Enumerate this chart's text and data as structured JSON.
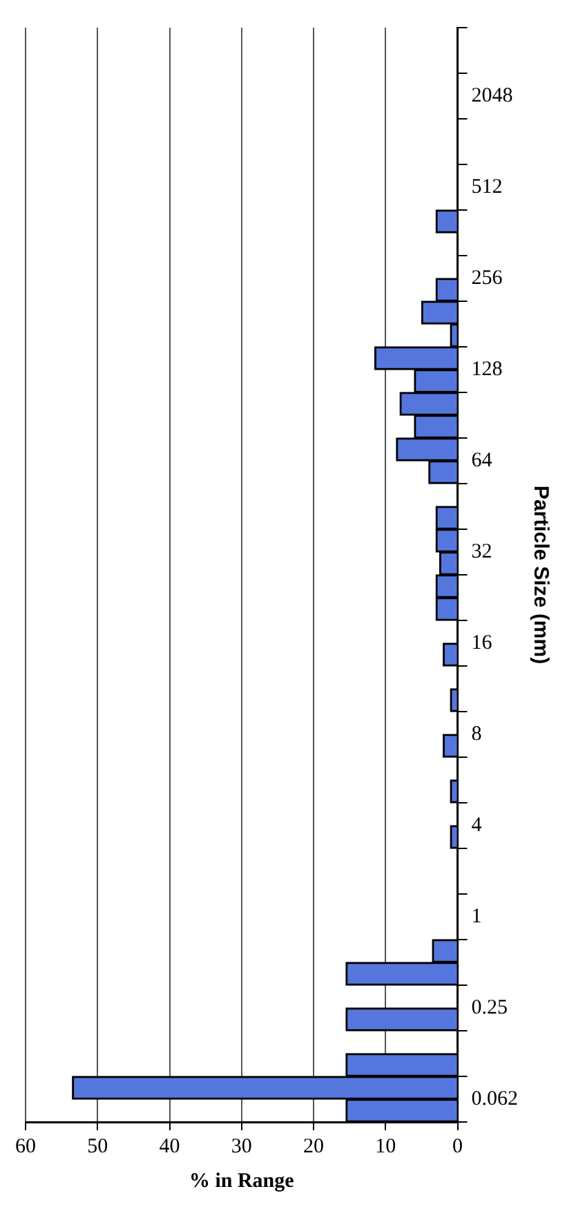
{
  "chart_data": {
    "type": "bar",
    "orientation": "horizontal",
    "xlabel": "% in Range",
    "ylabel": "Particle Size (mm)",
    "categories": [
      null,
      "2048",
      null,
      "512",
      null,
      "256",
      null,
      "128",
      null,
      "64",
      null,
      "32",
      null,
      "16",
      null,
      "8",
      null,
      "4",
      null,
      "1",
      null,
      "0.25",
      null,
      "0.062"
    ],
    "series": [
      {
        "color": "#5577dd",
        "values": [
          0,
          0,
          0,
          0,
          3,
          0,
          5,
          11.5,
          8,
          8.5,
          0,
          3,
          3,
          0,
          0,
          0,
          0,
          0,
          0,
          0,
          3.5,
          0,
          0,
          53.5
        ]
      },
      {
        "color": "#5577dd",
        "values": [
          0,
          0,
          0,
          0,
          0,
          3,
          1,
          6,
          6,
          4,
          3,
          2.5,
          3,
          2,
          1,
          2,
          1,
          1,
          0,
          0,
          15.5,
          15.5,
          15.5,
          15.5
        ]
      }
    ],
    "xlim": [
      60,
      0
    ],
    "xticks": [
      60,
      50,
      40,
      30,
      20,
      10,
      0
    ],
    "grid": "x"
  }
}
